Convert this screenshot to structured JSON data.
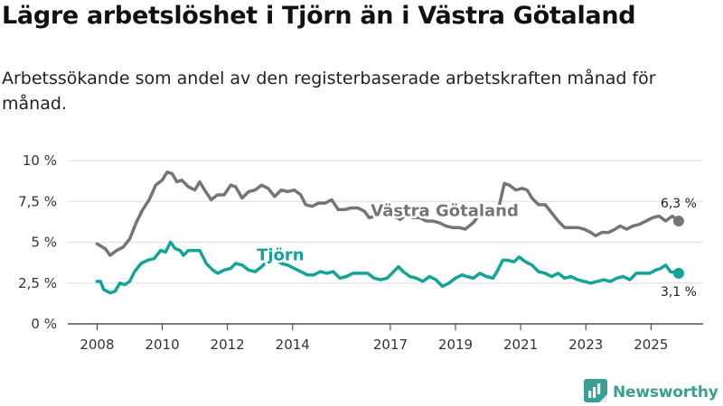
{
  "header": {
    "title": "Lägre arbetslöshet i Tjörn än i Västra Götaland",
    "subtitle": "Arbetssökande som andel av den registerbaserade arbetskraften månad för månad."
  },
  "brand": {
    "name": "Newsworthy",
    "icon": "bar-chart-logo-icon"
  },
  "colors": {
    "region": "#757478",
    "local": "#12a497",
    "grid": "#dddddd",
    "axis": "#333333",
    "brand": "#3a9e93"
  },
  "chart_data": {
    "type": "line",
    "title": "Lägre arbetslöshet i Tjörn än i Västra Götaland",
    "subtitle": "Arbetssökande som andel av den registerbaserade arbetskraften månad för månad.",
    "xlabel": "",
    "ylabel": "",
    "x_unit": "year",
    "xlim": [
      2007.1,
      2026.6
    ],
    "ylim": [
      0,
      10
    ],
    "grid": true,
    "y_ticks": [
      {
        "value": 0,
        "label": "0 %"
      },
      {
        "value": 2.5,
        "label": "2,5 %"
      },
      {
        "value": 5,
        "label": "5 %"
      },
      {
        "value": 7.5,
        "label": "7,5 %"
      },
      {
        "value": 10,
        "label": "10 %"
      }
    ],
    "x_ticks": [
      {
        "value": 2008,
        "label": "2008"
      },
      {
        "value": 2010,
        "label": "2010"
      },
      {
        "value": 2012,
        "label": "2012"
      },
      {
        "value": 2014,
        "label": "2014"
      },
      {
        "value": 2017,
        "label": "2017"
      },
      {
        "value": 2019,
        "label": "2019"
      },
      {
        "value": 2021,
        "label": "2021"
      },
      {
        "value": 2023,
        "label": "2023"
      },
      {
        "value": 2025,
        "label": "2025"
      }
    ],
    "series": [
      {
        "name": "Västra Götaland",
        "label": "Västra Götaland",
        "color": "#757478",
        "end_label": "6,3 %",
        "end_value": 6.3,
        "label_anchor": [
          2016.4,
          6.6
        ],
        "points": [
          [
            2008.0,
            4.9
          ],
          [
            2008.25,
            4.6
          ],
          [
            2008.4,
            4.2
          ],
          [
            2008.6,
            4.5
          ],
          [
            2008.8,
            4.7
          ],
          [
            2009.0,
            5.2
          ],
          [
            2009.2,
            6.2
          ],
          [
            2009.4,
            7.0
          ],
          [
            2009.6,
            7.6
          ],
          [
            2009.8,
            8.5
          ],
          [
            2010.0,
            8.8
          ],
          [
            2010.15,
            9.3
          ],
          [
            2010.3,
            9.2
          ],
          [
            2010.45,
            8.7
          ],
          [
            2010.6,
            8.8
          ],
          [
            2010.8,
            8.4
          ],
          [
            2011.0,
            8.2
          ],
          [
            2011.15,
            8.7
          ],
          [
            2011.3,
            8.2
          ],
          [
            2011.5,
            7.6
          ],
          [
            2011.7,
            7.9
          ],
          [
            2011.9,
            7.9
          ],
          [
            2012.1,
            8.5
          ],
          [
            2012.25,
            8.4
          ],
          [
            2012.45,
            7.7
          ],
          [
            2012.65,
            8.1
          ],
          [
            2012.85,
            8.2
          ],
          [
            2013.05,
            8.5
          ],
          [
            2013.25,
            8.3
          ],
          [
            2013.45,
            7.8
          ],
          [
            2013.65,
            8.2
          ],
          [
            2013.85,
            8.1
          ],
          [
            2014.05,
            8.2
          ],
          [
            2014.25,
            7.9
          ],
          [
            2014.4,
            7.3
          ],
          [
            2014.6,
            7.2
          ],
          [
            2014.8,
            7.4
          ],
          [
            2015.0,
            7.4
          ],
          [
            2015.2,
            7.6
          ],
          [
            2015.4,
            7.0
          ],
          [
            2015.6,
            7.0
          ],
          [
            2015.8,
            7.1
          ],
          [
            2016.0,
            7.1
          ],
          [
            2016.2,
            6.9
          ],
          [
            2016.35,
            6.5
          ],
          [
            2016.55,
            6.6
          ],
          [
            2016.75,
            6.7
          ],
          [
            2016.95,
            6.8
          ],
          [
            2017.1,
            6.6
          ],
          [
            2017.3,
            6.4
          ],
          [
            2017.5,
            6.7
          ],
          [
            2017.7,
            6.5
          ],
          [
            2017.9,
            6.5
          ],
          [
            2018.1,
            6.3
          ],
          [
            2018.3,
            6.3
          ],
          [
            2018.5,
            6.2
          ],
          [
            2018.7,
            6.0
          ],
          [
            2018.9,
            5.9
          ],
          [
            2019.1,
            5.9
          ],
          [
            2019.3,
            5.8
          ],
          [
            2019.55,
            6.2
          ],
          [
            2019.8,
            6.9
          ],
          [
            2020.05,
            6.6
          ],
          [
            2020.3,
            6.9
          ],
          [
            2020.5,
            8.6
          ],
          [
            2020.65,
            8.5
          ],
          [
            2020.85,
            8.2
          ],
          [
            2021.05,
            8.3
          ],
          [
            2021.2,
            8.2
          ],
          [
            2021.35,
            7.7
          ],
          [
            2021.55,
            7.3
          ],
          [
            2021.75,
            7.3
          ],
          [
            2021.95,
            6.8
          ],
          [
            2022.15,
            6.3
          ],
          [
            2022.35,
            5.9
          ],
          [
            2022.55,
            5.9
          ],
          [
            2022.75,
            5.9
          ],
          [
            2022.95,
            5.8
          ],
          [
            2023.15,
            5.6
          ],
          [
            2023.3,
            5.4
          ],
          [
            2023.5,
            5.6
          ],
          [
            2023.7,
            5.6
          ],
          [
            2023.9,
            5.8
          ],
          [
            2024.05,
            6.0
          ],
          [
            2024.25,
            5.8
          ],
          [
            2024.45,
            6.0
          ],
          [
            2024.65,
            6.1
          ],
          [
            2024.85,
            6.3
          ],
          [
            2025.05,
            6.5
          ],
          [
            2025.25,
            6.6
          ],
          [
            2025.45,
            6.3
          ],
          [
            2025.65,
            6.6
          ],
          [
            2025.85,
            6.3
          ]
        ]
      },
      {
        "name": "Tjörn",
        "label": "Tjörn",
        "color": "#12a497",
        "end_label": "3,1 %",
        "end_value": 3.1,
        "label_anchor": [
          2012.9,
          3.9
        ],
        "points": [
          [
            2008.0,
            2.6
          ],
          [
            2008.1,
            2.6
          ],
          [
            2008.2,
            2.1
          ],
          [
            2008.4,
            1.9
          ],
          [
            2008.55,
            2.0
          ],
          [
            2008.7,
            2.5
          ],
          [
            2008.85,
            2.4
          ],
          [
            2009.0,
            2.6
          ],
          [
            2009.15,
            3.2
          ],
          [
            2009.35,
            3.7
          ],
          [
            2009.55,
            3.9
          ],
          [
            2009.75,
            4.0
          ],
          [
            2009.95,
            4.5
          ],
          [
            2010.1,
            4.4
          ],
          [
            2010.25,
            5.0
          ],
          [
            2010.4,
            4.6
          ],
          [
            2010.55,
            4.5
          ],
          [
            2010.65,
            4.2
          ],
          [
            2010.8,
            4.5
          ],
          [
            2010.95,
            4.5
          ],
          [
            2011.15,
            4.5
          ],
          [
            2011.35,
            3.7
          ],
          [
            2011.55,
            3.3
          ],
          [
            2011.7,
            3.1
          ],
          [
            2011.9,
            3.3
          ],
          [
            2012.1,
            3.4
          ],
          [
            2012.25,
            3.7
          ],
          [
            2012.45,
            3.6
          ],
          [
            2012.65,
            3.3
          ],
          [
            2012.85,
            3.2
          ],
          [
            2013.05,
            3.5
          ],
          [
            2013.25,
            3.9
          ],
          [
            2013.45,
            4.0
          ],
          [
            2013.65,
            3.7
          ],
          [
            2013.85,
            3.6
          ],
          [
            2014.05,
            3.4
          ],
          [
            2014.25,
            3.2
          ],
          [
            2014.45,
            3.0
          ],
          [
            2014.65,
            3.0
          ],
          [
            2014.85,
            3.2
          ],
          [
            2015.05,
            3.1
          ],
          [
            2015.25,
            3.2
          ],
          [
            2015.45,
            2.8
          ],
          [
            2015.65,
            2.9
          ],
          [
            2015.85,
            3.1
          ],
          [
            2016.05,
            3.1
          ],
          [
            2016.3,
            3.1
          ],
          [
            2016.5,
            2.8
          ],
          [
            2016.7,
            2.7
          ],
          [
            2016.9,
            2.8
          ],
          [
            2017.05,
            3.1
          ],
          [
            2017.25,
            3.5
          ],
          [
            2017.4,
            3.2
          ],
          [
            2017.6,
            2.9
          ],
          [
            2017.8,
            2.8
          ],
          [
            2018.0,
            2.6
          ],
          [
            2018.2,
            2.9
          ],
          [
            2018.4,
            2.7
          ],
          [
            2018.6,
            2.3
          ],
          [
            2018.8,
            2.5
          ],
          [
            2019.0,
            2.8
          ],
          [
            2019.2,
            3.0
          ],
          [
            2019.35,
            2.9
          ],
          [
            2019.55,
            2.8
          ],
          [
            2019.75,
            3.1
          ],
          [
            2019.95,
            2.9
          ],
          [
            2020.15,
            2.8
          ],
          [
            2020.3,
            3.3
          ],
          [
            2020.45,
            3.9
          ],
          [
            2020.6,
            3.9
          ],
          [
            2020.8,
            3.8
          ],
          [
            2020.95,
            4.1
          ],
          [
            2021.15,
            3.8
          ],
          [
            2021.35,
            3.6
          ],
          [
            2021.55,
            3.2
          ],
          [
            2021.75,
            3.1
          ],
          [
            2021.95,
            2.9
          ],
          [
            2022.15,
            3.1
          ],
          [
            2022.35,
            2.8
          ],
          [
            2022.55,
            2.9
          ],
          [
            2022.75,
            2.7
          ],
          [
            2022.95,
            2.6
          ],
          [
            2023.15,
            2.5
          ],
          [
            2023.35,
            2.6
          ],
          [
            2023.55,
            2.7
          ],
          [
            2023.75,
            2.6
          ],
          [
            2023.95,
            2.8
          ],
          [
            2024.15,
            2.9
          ],
          [
            2024.35,
            2.7
          ],
          [
            2024.55,
            3.1
          ],
          [
            2024.75,
            3.1
          ],
          [
            2024.95,
            3.1
          ],
          [
            2025.15,
            3.3
          ],
          [
            2025.3,
            3.4
          ],
          [
            2025.45,
            3.6
          ],
          [
            2025.6,
            3.2
          ],
          [
            2025.85,
            3.1
          ]
        ]
      }
    ]
  }
}
